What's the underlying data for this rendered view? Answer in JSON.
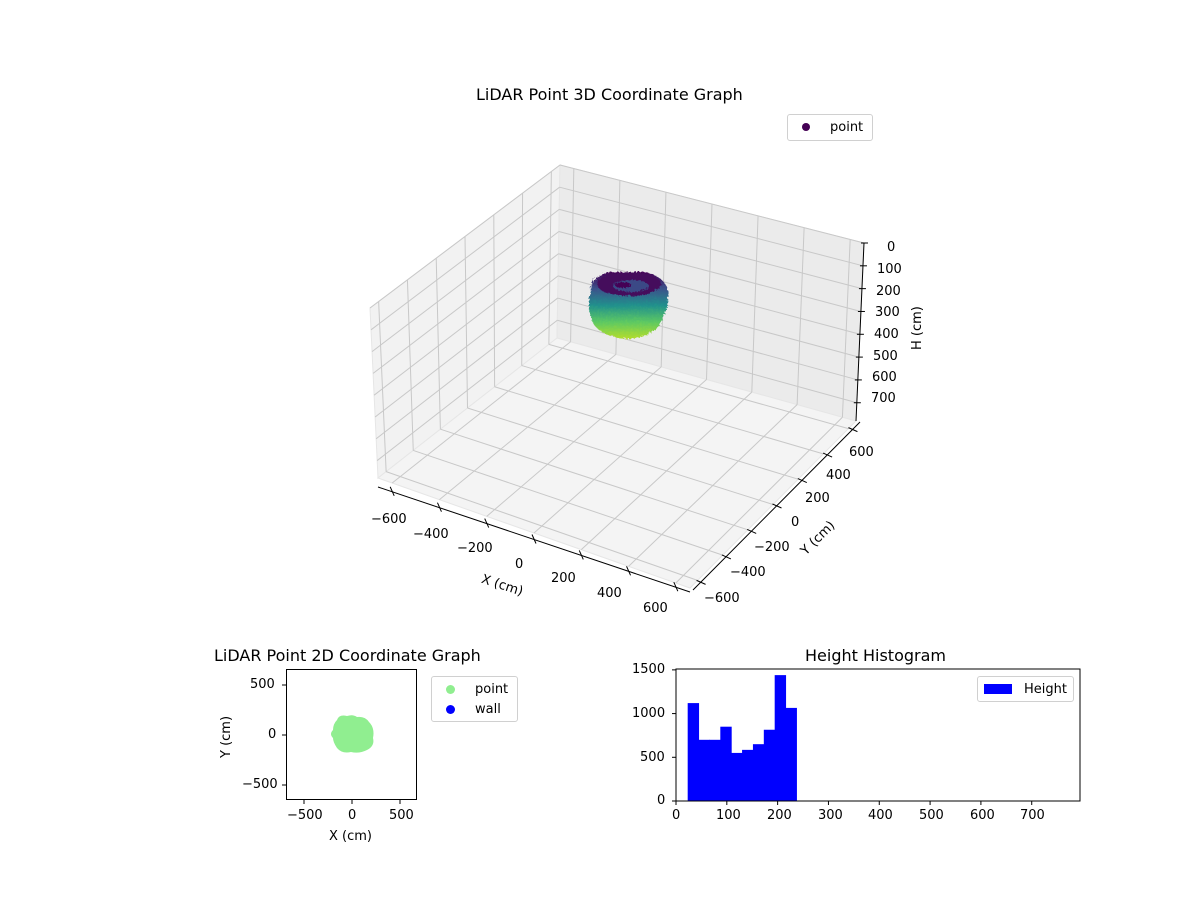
{
  "figure": {
    "plot3d": {
      "title": "LiDAR Point 3D Coordinate Graph",
      "xlabel": "X (cm)",
      "ylabel": "Y (cm)",
      "zlabel": "H (cm)",
      "x_ticks": [
        "−600",
        "−400",
        "−200",
        "0",
        "200",
        "400",
        "600"
      ],
      "y_ticks": [
        "−600",
        "−400",
        "−200",
        "0",
        "200",
        "400",
        "600"
      ],
      "z_ticks": [
        "0",
        "100",
        "200",
        "300",
        "400",
        "500",
        "600",
        "700"
      ],
      "legend": [
        {
          "label": "point",
          "color": "#440154"
        }
      ]
    },
    "plot2d": {
      "title": "LiDAR Point 2D Coordinate Graph",
      "xlabel": "X (cm)",
      "ylabel": "Y (cm)",
      "x_ticks": [
        "−500",
        "0",
        "500"
      ],
      "y_ticks": [
        "500",
        "0",
        "−500"
      ],
      "legend": [
        {
          "label": "point",
          "color": "#90ee90"
        },
        {
          "label": "wall",
          "color": "#0000ff"
        }
      ]
    },
    "histogram": {
      "title": "Height Histogram",
      "x_ticks": [
        "0",
        "100",
        "200",
        "300",
        "400",
        "500",
        "600",
        "700"
      ],
      "y_ticks": [
        "1500",
        "1000",
        "500",
        "0"
      ],
      "legend": [
        {
          "label": "Height",
          "color": "#0000ff"
        }
      ]
    }
  },
  "chart_data": [
    {
      "type": "scatter",
      "title": "LiDAR Point 3D Coordinate Graph",
      "xlabel": "X (cm)",
      "ylabel": "Y (cm)",
      "zlabel": "H (cm)",
      "xlim": [
        -660,
        660
      ],
      "ylim": [
        -660,
        660
      ],
      "zlim": [
        780,
        0
      ],
      "series": [
        {
          "name": "point",
          "colormap": "viridis",
          "description": "cylindrical/donut-shaped cluster centered near (0,0), radius ~200 cm, height ~20–240 cm, colored by height"
        }
      ],
      "legend_position": "upper right"
    },
    {
      "type": "scatter",
      "title": "LiDAR Point 2D Coordinate Graph",
      "xlabel": "X (cm)",
      "ylabel": "Y (cm)",
      "xlim": [
        -660,
        660
      ],
      "ylim": [
        -660,
        660
      ],
      "series": [
        {
          "name": "point",
          "color": "#90ee90",
          "description": "dense blob centered near (0,0), radius ~200 cm"
        },
        {
          "name": "wall",
          "color": "#0000ff",
          "description": "no visible points"
        }
      ],
      "legend_position": "outside right"
    },
    {
      "type": "bar",
      "title": "Height Histogram",
      "xlabel": "",
      "ylabel": "",
      "bin_edges": [
        23,
        44.4,
        65.8,
        87.2,
        108.6,
        130,
        151.4,
        172.8,
        194.2,
        215.6,
        237
      ],
      "values": [
        1120,
        700,
        700,
        850,
        550,
        585,
        650,
        815,
        1440,
        1065
      ],
      "series": [
        {
          "name": "Height",
          "color": "#0000ff"
        }
      ],
      "xlim": [
        0,
        795
      ],
      "ylim": [
        0,
        1510
      ],
      "legend_position": "upper right"
    }
  ]
}
